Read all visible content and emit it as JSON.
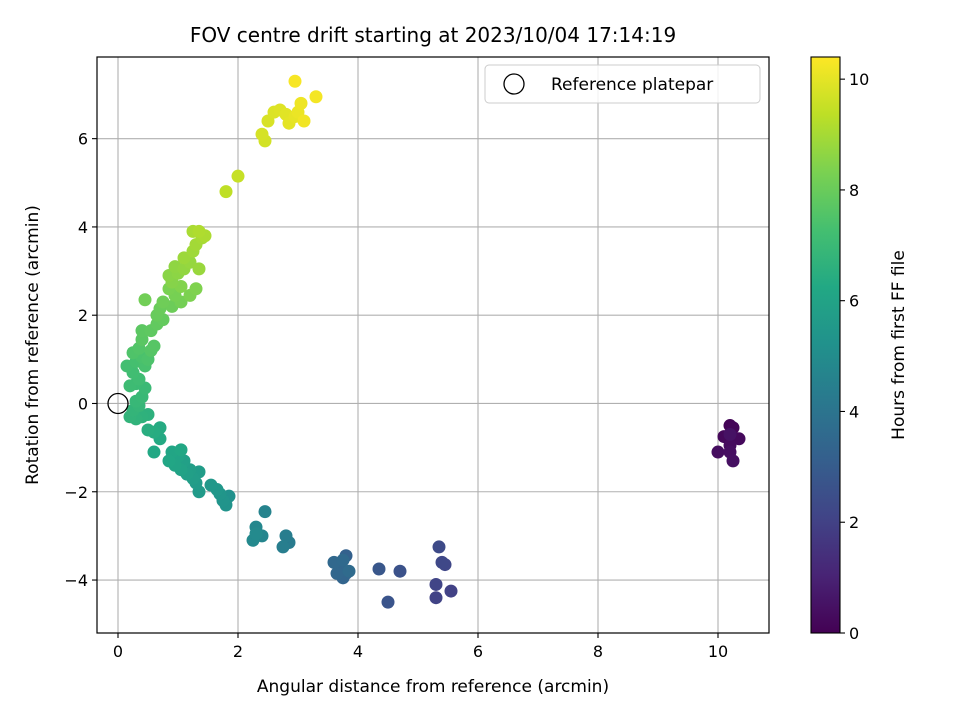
{
  "chart_data": {
    "type": "scatter",
    "title": "FOV centre drift starting at 2023/10/04 17:14:19",
    "xlabel": "Angular distance from reference (arcmin)",
    "ylabel": "Rotation from reference (arcmin)",
    "xlim": [
      -0.35,
      10.85
    ],
    "ylim": [
      -5.2,
      7.85
    ],
    "x_ticks": [
      0,
      2,
      4,
      6,
      8,
      10
    ],
    "y_ticks": [
      -4,
      -2,
      0,
      2,
      4,
      6
    ],
    "grid": true,
    "legend": {
      "placement": "top-right",
      "entries": [
        "Reference platepar"
      ]
    },
    "reference_point": {
      "x": 0,
      "y": 0,
      "label": "Reference platepar"
    },
    "colorbar": {
      "label": "Hours from first FF file",
      "range": [
        0,
        10.4
      ],
      "ticks": [
        0,
        2,
        4,
        6,
        8,
        10
      ],
      "colormap": "viridis"
    },
    "points": [
      {
        "x": 10.2,
        "y": -0.5,
        "t": 0.1
      },
      {
        "x": 10.25,
        "y": -0.55,
        "t": 0.15
      },
      {
        "x": 10.1,
        "y": -0.75,
        "t": 0.2
      },
      {
        "x": 10.35,
        "y": -0.8,
        "t": 0.25
      },
      {
        "x": 10.2,
        "y": -0.95,
        "t": 0.3
      },
      {
        "x": 10.0,
        "y": -1.1,
        "t": 0.35
      },
      {
        "x": 10.2,
        "y": -1.1,
        "t": 0.4
      },
      {
        "x": 10.25,
        "y": -1.3,
        "t": 0.45
      },
      {
        "x": 10.2,
        "y": -0.7,
        "t": 0.5
      },
      {
        "x": 5.55,
        "y": -4.25,
        "t": 2.0
      },
      {
        "x": 5.3,
        "y": -4.4,
        "t": 2.05
      },
      {
        "x": 5.3,
        "y": -4.1,
        "t": 2.1
      },
      {
        "x": 5.45,
        "y": -3.65,
        "t": 2.2
      },
      {
        "x": 5.4,
        "y": -3.6,
        "t": 2.25
      },
      {
        "x": 5.35,
        "y": -3.25,
        "t": 2.3
      },
      {
        "x": 4.7,
        "y": -3.8,
        "t": 2.6
      },
      {
        "x": 4.5,
        "y": -4.5,
        "t": 2.7
      },
      {
        "x": 4.35,
        "y": -3.75,
        "t": 2.8
      },
      {
        "x": 3.8,
        "y": -3.45,
        "t": 3.2
      },
      {
        "x": 3.8,
        "y": -3.85,
        "t": 3.3
      },
      {
        "x": 3.75,
        "y": -3.95,
        "t": 3.35
      },
      {
        "x": 3.7,
        "y": -3.7,
        "t": 3.4
      },
      {
        "x": 3.65,
        "y": -3.85,
        "t": 3.45
      },
      {
        "x": 3.6,
        "y": -3.6,
        "t": 3.5
      },
      {
        "x": 3.75,
        "y": -3.55,
        "t": 3.55
      },
      {
        "x": 3.85,
        "y": -3.8,
        "t": 3.6
      },
      {
        "x": 2.85,
        "y": -3.15,
        "t": 4.3
      },
      {
        "x": 2.8,
        "y": -3.0,
        "t": 4.35
      },
      {
        "x": 2.75,
        "y": -3.25,
        "t": 4.4
      },
      {
        "x": 2.45,
        "y": -2.45,
        "t": 4.6
      },
      {
        "x": 2.4,
        "y": -3.0,
        "t": 4.7
      },
      {
        "x": 2.3,
        "y": -2.8,
        "t": 4.8
      },
      {
        "x": 2.25,
        "y": -3.1,
        "t": 4.85
      },
      {
        "x": 2.3,
        "y": -2.95,
        "t": 4.9
      },
      {
        "x": 1.85,
        "y": -2.1,
        "t": 5.2
      },
      {
        "x": 1.8,
        "y": -2.3,
        "t": 5.3
      },
      {
        "x": 1.75,
        "y": -2.2,
        "t": 5.35
      },
      {
        "x": 1.7,
        "y": -2.05,
        "t": 5.4
      },
      {
        "x": 1.65,
        "y": -1.95,
        "t": 5.45
      },
      {
        "x": 1.55,
        "y": -1.85,
        "t": 5.5
      },
      {
        "x": 1.35,
        "y": -2.0,
        "t": 5.6
      },
      {
        "x": 1.3,
        "y": -1.8,
        "t": 5.65
      },
      {
        "x": 1.35,
        "y": -1.55,
        "t": 5.7
      },
      {
        "x": 1.25,
        "y": -1.7,
        "t": 5.75
      },
      {
        "x": 1.2,
        "y": -1.5,
        "t": 5.8
      },
      {
        "x": 1.15,
        "y": -1.6,
        "t": 5.85
      },
      {
        "x": 1.1,
        "y": -1.3,
        "t": 5.9
      },
      {
        "x": 1.05,
        "y": -1.5,
        "t": 5.95
      },
      {
        "x": 1.0,
        "y": -1.2,
        "t": 6.0
      },
      {
        "x": 0.95,
        "y": -1.4,
        "t": 6.05
      },
      {
        "x": 0.9,
        "y": -1.1,
        "t": 6.1
      },
      {
        "x": 0.85,
        "y": -1.3,
        "t": 6.15
      },
      {
        "x": 1.05,
        "y": -1.05,
        "t": 6.2
      },
      {
        "x": 0.6,
        "y": -1.1,
        "t": 6.25
      },
      {
        "x": 0.7,
        "y": -0.8,
        "t": 6.3
      },
      {
        "x": 0.7,
        "y": -0.55,
        "t": 6.35
      },
      {
        "x": 0.6,
        "y": -0.65,
        "t": 6.4
      },
      {
        "x": 0.5,
        "y": -0.6,
        "t": 6.45
      },
      {
        "x": 0.5,
        "y": -0.25,
        "t": 6.6
      },
      {
        "x": 0.4,
        "y": -0.3,
        "t": 6.65
      },
      {
        "x": 0.3,
        "y": -0.35,
        "t": 6.7
      },
      {
        "x": 0.2,
        "y": -0.3,
        "t": 6.75
      },
      {
        "x": 0.25,
        "y": -0.15,
        "t": 6.8
      },
      {
        "x": 0.35,
        "y": -0.05,
        "t": 6.85
      },
      {
        "x": 0.3,
        "y": 0.05,
        "t": 6.9
      },
      {
        "x": 0.4,
        "y": 0.15,
        "t": 6.95
      },
      {
        "x": 0.45,
        "y": 0.35,
        "t": 7.0
      },
      {
        "x": 0.3,
        "y": 0.45,
        "t": 7.05
      },
      {
        "x": 0.2,
        "y": 0.4,
        "t": 7.1
      },
      {
        "x": 0.35,
        "y": 0.55,
        "t": 7.15
      },
      {
        "x": 0.25,
        "y": 0.7,
        "t": 7.2
      },
      {
        "x": 0.15,
        "y": 0.85,
        "t": 7.25
      },
      {
        "x": 0.3,
        "y": 0.95,
        "t": 7.3
      },
      {
        "x": 0.45,
        "y": 0.85,
        "t": 7.35
      },
      {
        "x": 0.4,
        "y": 1.05,
        "t": 7.4
      },
      {
        "x": 0.5,
        "y": 1.0,
        "t": 7.45
      },
      {
        "x": 0.25,
        "y": 1.15,
        "t": 7.5
      },
      {
        "x": 0.35,
        "y": 1.25,
        "t": 7.55
      },
      {
        "x": 0.55,
        "y": 1.2,
        "t": 7.6
      },
      {
        "x": 0.6,
        "y": 1.3,
        "t": 7.65
      },
      {
        "x": 0.4,
        "y": 1.45,
        "t": 7.7
      },
      {
        "x": 0.4,
        "y": 1.65,
        "t": 7.75
      },
      {
        "x": 0.55,
        "y": 1.65,
        "t": 7.8
      },
      {
        "x": 0.65,
        "y": 1.8,
        "t": 7.85
      },
      {
        "x": 0.75,
        "y": 1.9,
        "t": 7.9
      },
      {
        "x": 0.65,
        "y": 2.0,
        "t": 7.95
      },
      {
        "x": 0.7,
        "y": 2.15,
        "t": 8.0
      },
      {
        "x": 0.9,
        "y": 2.2,
        "t": 8.05
      },
      {
        "x": 0.75,
        "y": 2.3,
        "t": 8.1
      },
      {
        "x": 0.45,
        "y": 2.35,
        "t": 8.15
      },
      {
        "x": 1.05,
        "y": 2.3,
        "t": 8.2
      },
      {
        "x": 0.95,
        "y": 2.45,
        "t": 8.25
      },
      {
        "x": 0.85,
        "y": 2.6,
        "t": 8.3
      },
      {
        "x": 1.2,
        "y": 2.45,
        "t": 8.35
      },
      {
        "x": 1.3,
        "y": 2.6,
        "t": 8.4
      },
      {
        "x": 1.05,
        "y": 2.65,
        "t": 8.45
      },
      {
        "x": 0.9,
        "y": 2.75,
        "t": 8.5
      },
      {
        "x": 0.85,
        "y": 2.9,
        "t": 8.55
      },
      {
        "x": 1.0,
        "y": 2.95,
        "t": 8.6
      },
      {
        "x": 0.95,
        "y": 3.1,
        "t": 8.65
      },
      {
        "x": 1.1,
        "y": 3.05,
        "t": 8.7
      },
      {
        "x": 1.2,
        "y": 3.2,
        "t": 8.75
      },
      {
        "x": 1.35,
        "y": 3.05,
        "t": 8.8
      },
      {
        "x": 1.1,
        "y": 3.3,
        "t": 8.85
      },
      {
        "x": 1.25,
        "y": 3.45,
        "t": 8.9
      },
      {
        "x": 1.3,
        "y": 3.6,
        "t": 8.95
      },
      {
        "x": 1.4,
        "y": 3.75,
        "t": 9.0
      },
      {
        "x": 1.25,
        "y": 3.9,
        "t": 9.05
      },
      {
        "x": 1.45,
        "y": 3.8,
        "t": 9.1
      },
      {
        "x": 1.35,
        "y": 3.9,
        "t": 9.15
      },
      {
        "x": 1.8,
        "y": 4.8,
        "t": 9.4
      },
      {
        "x": 2.0,
        "y": 5.15,
        "t": 9.5
      },
      {
        "x": 2.45,
        "y": 5.95,
        "t": 9.7
      },
      {
        "x": 2.4,
        "y": 6.1,
        "t": 9.75
      },
      {
        "x": 2.5,
        "y": 6.4,
        "t": 9.8
      },
      {
        "x": 2.6,
        "y": 6.6,
        "t": 9.85
      },
      {
        "x": 2.7,
        "y": 6.65,
        "t": 9.9
      },
      {
        "x": 2.8,
        "y": 6.55,
        "t": 9.95
      },
      {
        "x": 2.85,
        "y": 6.35,
        "t": 10.0
      },
      {
        "x": 2.95,
        "y": 6.5,
        "t": 10.05
      },
      {
        "x": 3.0,
        "y": 6.6,
        "t": 10.1
      },
      {
        "x": 3.05,
        "y": 6.8,
        "t": 10.15
      },
      {
        "x": 3.1,
        "y": 6.4,
        "t": 10.2
      },
      {
        "x": 3.3,
        "y": 6.95,
        "t": 10.25
      },
      {
        "x": 2.95,
        "y": 7.3,
        "t": 10.3
      }
    ]
  }
}
